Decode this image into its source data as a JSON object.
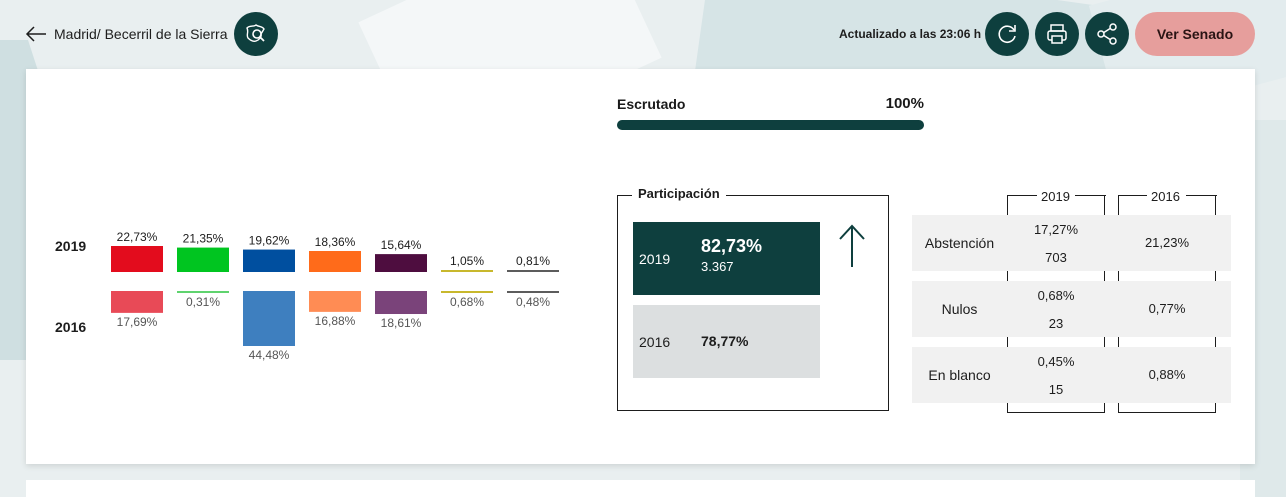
{
  "header": {
    "back_label": "Madrid/ Becerril de la Sierra",
    "updated": "Actualizado a las 23:06 h",
    "senado_label": "Ver Senado",
    "icons": {
      "back": "arrow-left-icon",
      "search_map": "map-search-icon",
      "refresh": "refresh-icon",
      "print": "printer-icon",
      "share": "share-icon"
    }
  },
  "colors": {
    "primary": "#0e3f3e",
    "senado": "#e69e9c",
    "light_row": "#f1f1f1",
    "grey_box": "#dcdfe0"
  },
  "escrutado": {
    "label": "Escrutado",
    "value": "100%",
    "fraction": 1.0
  },
  "chart_data": {
    "type": "bar",
    "series": [
      {
        "name": "2019",
        "values": [
          22.73,
          21.35,
          19.62,
          18.36,
          15.64,
          1.05,
          0.81
        ],
        "labels": [
          "22,73%",
          "21,35%",
          "19,62%",
          "18,36%",
          "15,64%",
          "1,05%",
          "0,81%"
        ]
      },
      {
        "name": "2016",
        "values": [
          17.69,
          0.31,
          44.48,
          16.88,
          18.61,
          0.68,
          0.48
        ],
        "labels": [
          "17,69%",
          "0,31%",
          "44,48%",
          "16,88%",
          "18,61%",
          "0,68%",
          "0,48%"
        ]
      }
    ],
    "colors_2019": [
      "#e30c1d",
      "#00c520",
      "#004f9f",
      "#ff6b1a",
      "#4e0d3f",
      "#c8b82d",
      "#5c5c5c"
    ],
    "colors_2016": [
      "#e84a57",
      "#5fd36e",
      "#3e7fbf",
      "#ff8c54",
      "#7a437a",
      "#c8b82d",
      "#5c5c5c"
    ],
    "xlabel": "",
    "ylabel": ""
  },
  "participacion": {
    "title": "Participación",
    "y2019": {
      "year": "2019",
      "pct": "82,73%",
      "count": "3.367"
    },
    "y2016": {
      "year": "2016",
      "pct": "78,77%"
    },
    "trend_icon": "arrow-up-icon"
  },
  "abstencion_table": {
    "headers": [
      "2019",
      "2016"
    ],
    "rows": [
      {
        "name": "Abstención",
        "v2019_pct": "17,27%",
        "v2019_count": "703",
        "v2016_pct": "21,23%"
      },
      {
        "name": "Nulos",
        "v2019_pct": "0,68%",
        "v2019_count": "23",
        "v2016_pct": "0,77%"
      },
      {
        "name": "En blanco",
        "v2019_pct": "0,45%",
        "v2019_count": "15",
        "v2016_pct": "0,88%"
      }
    ]
  }
}
